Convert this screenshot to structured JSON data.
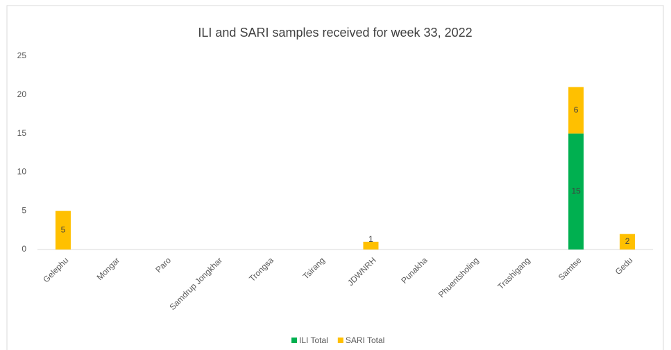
{
  "chart_data": {
    "type": "stacked_bar",
    "title": "ILI and SARI samples received for week 33, 2022",
    "categories": [
      "Gelephu",
      "Mongar",
      "Paro",
      "Samdrup Jongkhar",
      "Trongsa",
      "Tsirang",
      "JDWNRH",
      "Punakha",
      "Phuentsholing",
      "Trashigang",
      "Samtse",
      "Gedu"
    ],
    "series": [
      {
        "name": "ILI Total",
        "color": "#00b050",
        "values": [
          0,
          0,
          0,
          0,
          0,
          0,
          0,
          0,
          0,
          0,
          15,
          0
        ]
      },
      {
        "name": "SARI Total",
        "color": "#ffc000",
        "values": [
          5,
          0,
          0,
          0,
          0,
          0,
          1,
          0,
          0,
          0,
          6,
          2
        ]
      }
    ],
    "ylim": [
      0,
      25
    ],
    "yticks": [
      0,
      5,
      10,
      15,
      20,
      25
    ],
    "grid": false,
    "legend": "bottom"
  }
}
